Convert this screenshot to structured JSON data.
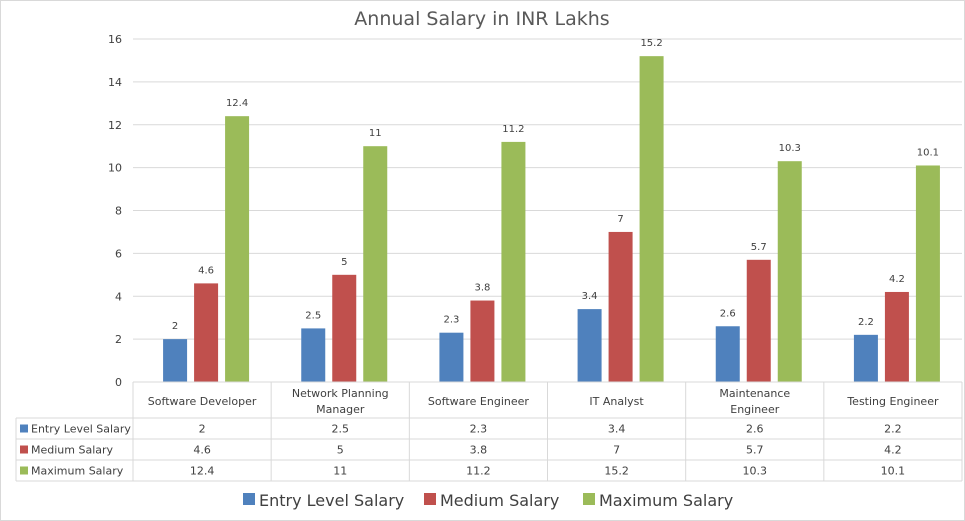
{
  "chart_data": {
    "type": "bar",
    "title": "Annual Salary in INR Lakhs",
    "xlabel": "",
    "ylabel": "",
    "ylim": [
      0,
      16
    ],
    "yticks": [
      0,
      2,
      4,
      6,
      8,
      10,
      12,
      14,
      16
    ],
    "grid": true,
    "legend_position": "bottom",
    "data_table": true,
    "categories": [
      [
        "Software Developer"
      ],
      [
        "Network Planning",
        "Manager"
      ],
      [
        "Software Engineer"
      ],
      [
        "IT Analyst"
      ],
      [
        "Maintenance",
        "Engineer"
      ],
      [
        "Testing Engineer"
      ]
    ],
    "series": [
      {
        "name": "Entry Level Salary",
        "color": "#4f81bd",
        "values": [
          2,
          2.5,
          2.3,
          3.4,
          2.6,
          2.2
        ]
      },
      {
        "name": "Medium Salary",
        "color": "#c0504d",
        "values": [
          4.6,
          5,
          3.8,
          7,
          5.7,
          4.2
        ]
      },
      {
        "name": "Maximum Salary",
        "color": "#9bbb59",
        "values": [
          12.4,
          11,
          11.2,
          15.2,
          10.3,
          10.1
        ]
      }
    ]
  }
}
